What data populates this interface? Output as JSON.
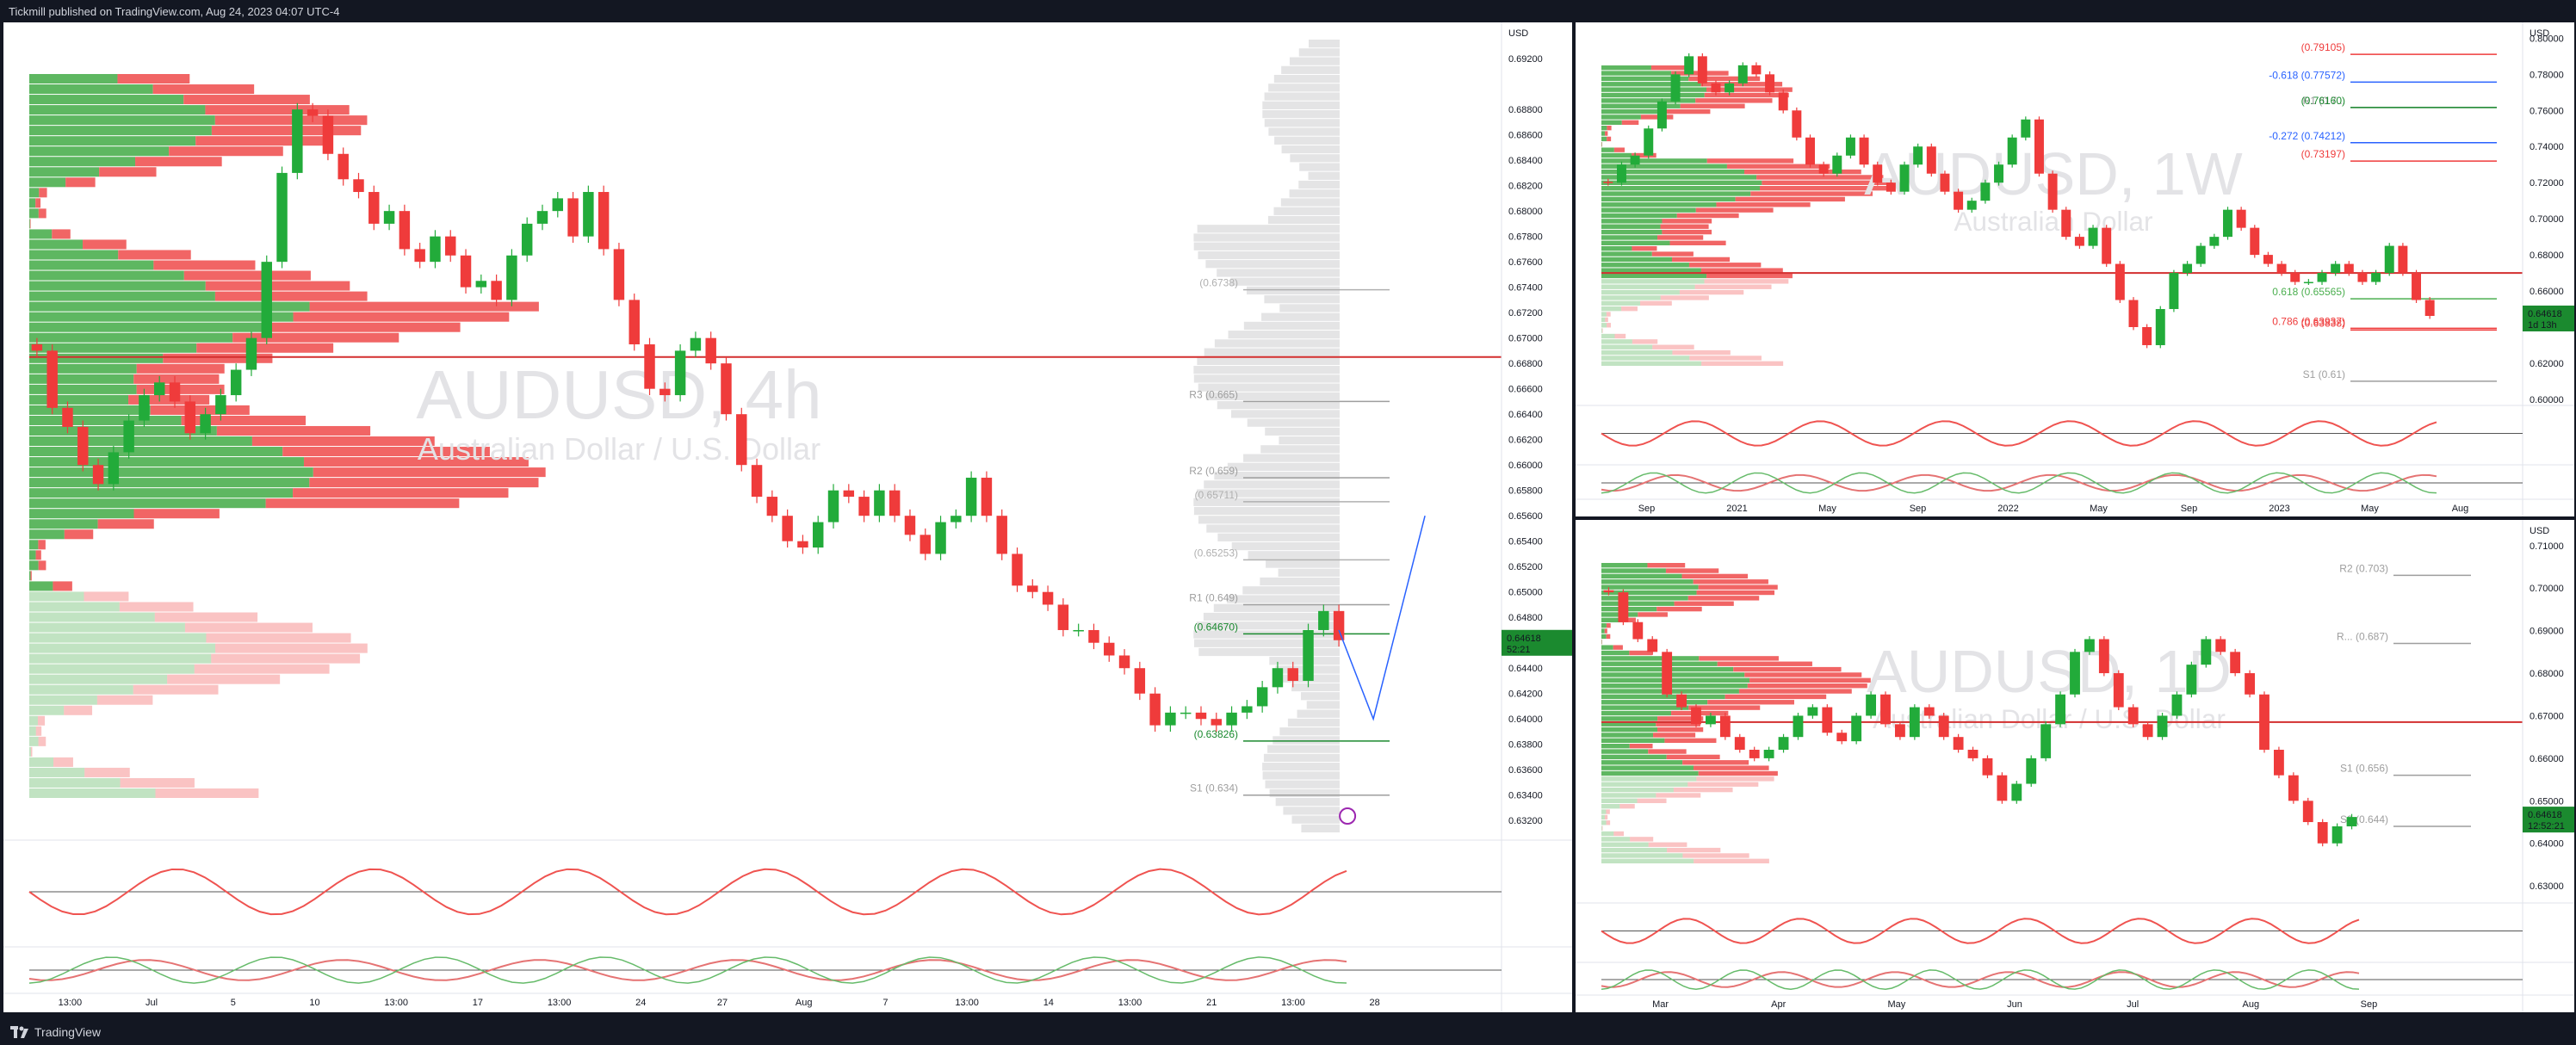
{
  "header": {
    "published": "Tickmill published on TradingView.com, Aug 24, 2023 04:07 UTC-4"
  },
  "footer": {
    "brand": "TradingView"
  },
  "currency_label": "USD",
  "colors": {
    "up": "#22ab3a",
    "down": "#ef3b3b",
    "vp_up": "#4caf50",
    "vp_down": "#f05454",
    "accent_green": "#0b8a2e",
    "price_box": "#1b8a2f"
  },
  "chart_data": [
    {
      "id": "main_4h",
      "type": "candlestick",
      "watermark": "AUDUSD, 4h",
      "watermark_sub": "Australian Dollar / U.S. Dollar",
      "ylim": [
        0.631,
        0.6935
      ],
      "price_ticks": [
        "0.69200",
        "0.68800",
        "0.68600",
        "0.68400",
        "0.68200",
        "0.68000",
        "0.67800",
        "0.67600",
        "0.67400",
        "0.67200",
        "0.67000",
        "0.66800",
        "0.66600",
        "0.66400",
        "0.66200",
        "0.66000",
        "0.65800",
        "0.65600",
        "0.65400",
        "0.65200",
        "0.65000",
        "0.64800",
        "0.64400",
        "0.64200",
        "0.64000",
        "0.63800",
        "0.63600",
        "0.63400",
        "0.63200"
      ],
      "x_ticks": [
        "13:00",
        "Jul",
        "5",
        "10",
        "13:00",
        "17",
        "13:00",
        "24",
        "27",
        "Aug",
        "7",
        "13:00",
        "14",
        "13:00",
        "21",
        "13:00",
        "28"
      ],
      "current_price": "0.64618",
      "countdown": "52:21",
      "levels": [
        {
          "label": "R3 (0.665)",
          "value": 0.665,
          "color": "#9e9e9e"
        },
        {
          "label": "R2 (0.659)",
          "value": 0.659,
          "color": "#9e9e9e"
        },
        {
          "label": "(0.65711)",
          "value": 0.65711,
          "color": "#b0b0b0"
        },
        {
          "label": "(0.65253)",
          "value": 0.65253,
          "color": "#b0b0b0"
        },
        {
          "label": "R1 (0.649)",
          "value": 0.649,
          "color": "#9e9e9e"
        },
        {
          "label": "(0.64670)",
          "value": 0.6467,
          "color": "#1b8a2f"
        },
        {
          "label": "(0.63826)",
          "value": 0.63826,
          "color": "#1b8a2f"
        },
        {
          "label": "S1 (0.634)",
          "value": 0.634,
          "color": "#9e9e9e"
        },
        {
          "label": "(0.6738)",
          "value": 0.6738,
          "color": "#b0b0b0"
        }
      ],
      "candles": [
        0.669,
        0.6645,
        0.663,
        0.66,
        0.6585,
        0.661,
        0.6635,
        0.6655,
        0.6665,
        0.665,
        0.6625,
        0.664,
        0.6655,
        0.6675,
        0.67,
        0.676,
        0.683,
        0.688,
        0.6875,
        0.6845,
        0.6825,
        0.6815,
        0.679,
        0.68,
        0.677,
        0.676,
        0.678,
        0.6765,
        0.674,
        0.6745,
        0.673,
        0.6765,
        0.679,
        0.68,
        0.681,
        0.678,
        0.6815,
        0.677,
        0.673,
        0.6695,
        0.666,
        0.6655,
        0.669,
        0.67,
        0.668,
        0.664,
        0.66,
        0.6575,
        0.656,
        0.654,
        0.6535,
        0.6555,
        0.658,
        0.6575,
        0.656,
        0.658,
        0.656,
        0.6545,
        0.653,
        0.6555,
        0.656,
        0.659,
        0.656,
        0.653,
        0.6505,
        0.65,
        0.649,
        0.647,
        0.647,
        0.646,
        0.645,
        0.644,
        0.642,
        0.6395,
        0.6405,
        0.6405,
        0.64,
        0.6395,
        0.6405,
        0.641,
        0.6425,
        0.644,
        0.643,
        0.647,
        0.6485,
        0.6462
      ],
      "projection": [
        0.647,
        0.64,
        0.656
      ]
    },
    {
      "id": "weekly",
      "type": "candlestick",
      "watermark": "AUDUSD, 1W",
      "watermark_sub": "Australian Dollar",
      "ylim": [
        0.599,
        0.804
      ],
      "price_ticks": [
        "0.80000",
        "0.78000",
        "0.76000",
        "0.74000",
        "0.72000",
        "0.70000",
        "0.68000",
        "0.66000",
        "0.62000",
        "0.60000"
      ],
      "x_ticks": [
        "Sep",
        "2021",
        "May",
        "Sep",
        "2022",
        "May",
        "Sep",
        "2023",
        "May",
        "Aug"
      ],
      "current_price": "0.64618",
      "countdown": "1d 13h",
      "levels": [
        {
          "label": "(0.79105)",
          "value": 0.79105,
          "color": "#ef3b3b"
        },
        {
          "label": "-0.618 (0.77572)",
          "value": 0.77572,
          "color": "#2962ff"
        },
        {
          "label": "R1 (0.7...",
          "value": 0.7616,
          "color": "#9e9e9e"
        },
        {
          "label": "(0.76160)",
          "value": 0.7616,
          "color": "#1b8a2f"
        },
        {
          "label": "-0.272 (0.74212)",
          "value": 0.74212,
          "color": "#2962ff"
        },
        {
          "label": "(0.73197)",
          "value": 0.73197,
          "color": "#ef3b3b"
        },
        {
          "label": "0.618 (0.65565)",
          "value": 0.65565,
          "color": "#4caf50"
        },
        {
          "label": "0.786 (0.63937)",
          "value": 0.63937,
          "color": "#ef3b3b"
        },
        {
          "label": "(0.63838)",
          "value": 0.63838,
          "color": "#ef3b3b"
        },
        {
          "label": "S1 (0.61)",
          "value": 0.61,
          "color": "#9e9e9e"
        }
      ],
      "candles": [
        0.72,
        0.73,
        0.735,
        0.75,
        0.765,
        0.78,
        0.79,
        0.775,
        0.77,
        0.775,
        0.785,
        0.78,
        0.77,
        0.76,
        0.745,
        0.73,
        0.725,
        0.735,
        0.745,
        0.73,
        0.72,
        0.715,
        0.73,
        0.74,
        0.725,
        0.715,
        0.705,
        0.71,
        0.72,
        0.73,
        0.745,
        0.755,
        0.725,
        0.705,
        0.69,
        0.685,
        0.695,
        0.675,
        0.655,
        0.64,
        0.63,
        0.65,
        0.67,
        0.675,
        0.685,
        0.69,
        0.705,
        0.695,
        0.68,
        0.675,
        0.67,
        0.665,
        0.665,
        0.67,
        0.675,
        0.67,
        0.665,
        0.67,
        0.685,
        0.67,
        0.655,
        0.6462
      ]
    },
    {
      "id": "daily",
      "type": "candlestick",
      "watermark": "AUDUSD, 1D",
      "watermark_sub": "Australian Dollar / U.S. Dollar",
      "ylim": [
        0.627,
        0.714
      ],
      "price_ticks": [
        "0.71000",
        "0.70000",
        "0.69000",
        "0.68000",
        "0.67000",
        "0.66000",
        "0.65000",
        "0.64000",
        "0.63000"
      ],
      "x_ticks": [
        "Mar",
        "Apr",
        "May",
        "Jun",
        "Jul",
        "Aug",
        "Sep"
      ],
      "current_price": "0.64618",
      "countdown": "12:52:21",
      "levels": [
        {
          "label": "R2 (0.703)",
          "value": 0.703,
          "color": "#9e9e9e"
        },
        {
          "label": "R... (0.687)",
          "value": 0.687,
          "color": "#9e9e9e"
        },
        {
          "label": "S1 (0.656)",
          "value": 0.656,
          "color": "#9e9e9e"
        },
        {
          "label": "S2 (0.644)",
          "value": 0.644,
          "color": "#9e9e9e"
        }
      ],
      "candles": [
        0.699,
        0.692,
        0.688,
        0.685,
        0.675,
        0.672,
        0.668,
        0.67,
        0.665,
        0.662,
        0.66,
        0.662,
        0.665,
        0.67,
        0.672,
        0.666,
        0.664,
        0.67,
        0.675,
        0.668,
        0.665,
        0.672,
        0.67,
        0.665,
        0.662,
        0.66,
        0.656,
        0.65,
        0.654,
        0.66,
        0.668,
        0.675,
        0.685,
        0.688,
        0.68,
        0.672,
        0.668,
        0.665,
        0.67,
        0.675,
        0.682,
        0.688,
        0.685,
        0.68,
        0.675,
        0.662,
        0.656,
        0.65,
        0.645,
        0.64,
        0.644,
        0.6462
      ]
    }
  ]
}
